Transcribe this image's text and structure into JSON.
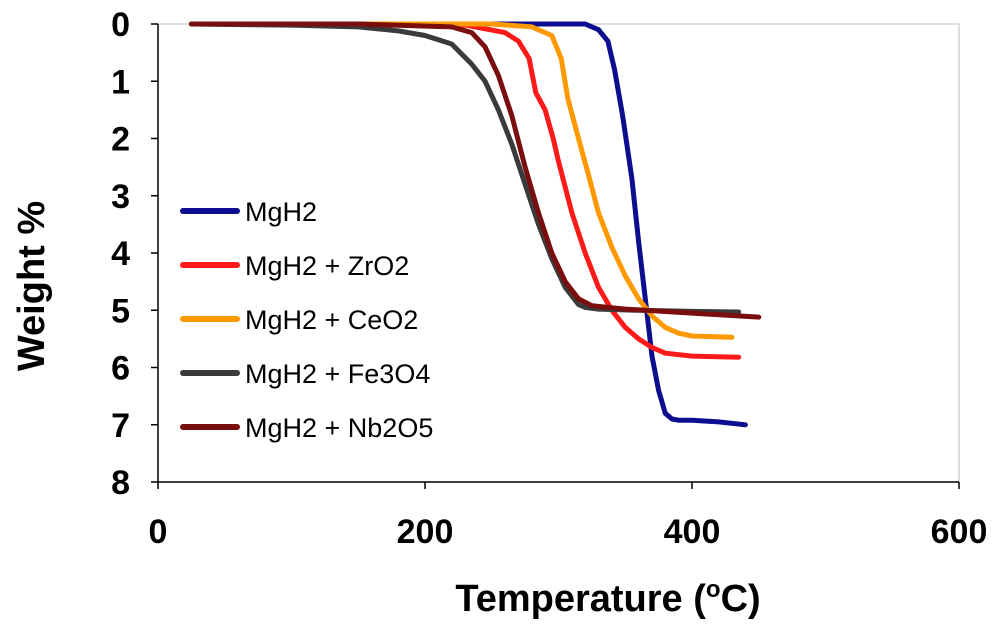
{
  "chart_data": {
    "type": "line",
    "xlabel": "Temperature (oC)",
    "xlabel_main": "Temperature (",
    "xlabel_sup": "o",
    "xlabel_unit": "C)",
    "ylabel": "Weight %",
    "xlim": [
      0,
      600
    ],
    "ylim": [
      0,
      8
    ],
    "y_inverted": true,
    "xticks": [
      "0",
      "200",
      "400",
      "600"
    ],
    "yticks": [
      "0",
      "1",
      "2",
      "3",
      "4",
      "5",
      "6",
      "7",
      "8"
    ],
    "legend_position": "middle-left",
    "series": [
      {
        "name": "MgH2",
        "color": "#0d0d8f",
        "x": [
          25,
          100,
          200,
          300,
          320,
          330,
          337,
          342,
          348,
          355,
          360,
          365,
          370,
          375,
          380,
          385,
          390,
          400,
          420,
          440
        ],
        "y": [
          0,
          0,
          0,
          0,
          0,
          0.1,
          0.3,
          0.8,
          1.6,
          2.7,
          3.8,
          4.8,
          5.8,
          6.4,
          6.8,
          6.9,
          6.92,
          6.92,
          6.95,
          7.0
        ]
      },
      {
        "name": "MgH2 + ZrO2",
        "color": "#ff1a1a",
        "x": [
          25,
          150,
          230,
          260,
          270,
          278,
          283,
          290,
          296,
          300,
          310,
          320,
          330,
          340,
          350,
          360,
          370,
          380,
          400,
          435
        ],
        "y": [
          0,
          0,
          0.02,
          0.15,
          0.3,
          0.6,
          1.2,
          1.5,
          2.0,
          2.4,
          3.3,
          4.0,
          4.6,
          5.0,
          5.3,
          5.5,
          5.65,
          5.75,
          5.8,
          5.82
        ]
      },
      {
        "name": "MgH2 + CeO2",
        "color": "#ff9900",
        "x": [
          25,
          150,
          250,
          280,
          295,
          302,
          307,
          315,
          322,
          330,
          340,
          350,
          360,
          370,
          380,
          390,
          400,
          430
        ],
        "y": [
          0,
          0,
          0,
          0.05,
          0.2,
          0.6,
          1.3,
          2.0,
          2.6,
          3.3,
          3.9,
          4.4,
          4.8,
          5.1,
          5.3,
          5.4,
          5.45,
          5.47
        ]
      },
      {
        "name": "MgH2 + Fe3O4",
        "color": "#3a3a3a",
        "x": [
          25,
          100,
          150,
          180,
          200,
          220,
          235,
          245,
          255,
          265,
          275,
          285,
          295,
          305,
          315,
          320,
          330,
          360,
          400,
          435
        ],
        "y": [
          0,
          0.02,
          0.05,
          0.12,
          0.2,
          0.35,
          0.7,
          1.0,
          1.5,
          2.1,
          2.8,
          3.5,
          4.1,
          4.6,
          4.9,
          4.95,
          4.98,
          5.0,
          5.02,
          5.03
        ]
      },
      {
        "name": "MgH2 + Nb2O5",
        "color": "#7a0d0d",
        "x": [
          25,
          150,
          220,
          235,
          245,
          255,
          265,
          275,
          285,
          295,
          305,
          315,
          325,
          350,
          400,
          450
        ],
        "y": [
          0,
          0,
          0.05,
          0.15,
          0.4,
          0.9,
          1.6,
          2.5,
          3.3,
          4.0,
          4.5,
          4.8,
          4.92,
          4.98,
          5.05,
          5.12
        ]
      }
    ]
  }
}
